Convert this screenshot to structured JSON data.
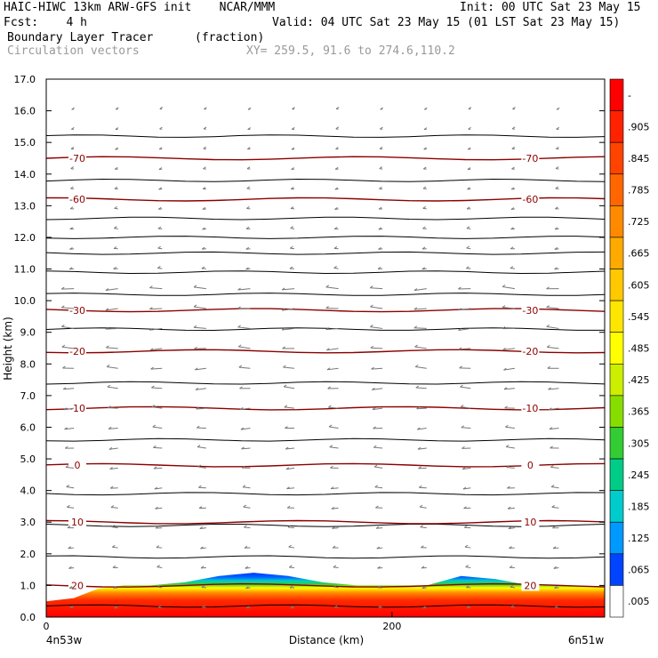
{
  "header": {
    "line1_left": "HAIC-HIWC 13km ARW-GFS init    NCAR/MMM",
    "line1_right": "Init: 00 UTC Sat 23 May 15",
    "line2_left": "Fcst:    4 h",
    "line2_right": "Valid: 04 UTC Sat 23 May 15 (01 LST Sat 23 May 15)",
    "field_name": "Boundary Layer Tracer",
    "field_units": "(fraction)",
    "vector_name": "Circulation vectors",
    "xsec_coords": "XY= 259.5, 91.6 to 274.6,110.2"
  },
  "chart_data": {
    "type": "heatmap",
    "xlabel": "Distance (km)",
    "ylabel": "Height (km)",
    "xlim": [
      0,
      323
    ],
    "ylim": [
      0,
      17
    ],
    "x_ticks": [
      0,
      200
    ],
    "y_ticks": [
      0.0,
      1.0,
      2.0,
      3.0,
      4.0,
      5.0,
      6.0,
      7.0,
      8.0,
      9.0,
      10.0,
      11.0,
      12.0,
      13.0,
      14.0,
      15.0,
      16.0,
      17.0
    ],
    "left_location": "4n53w",
    "right_location": "6n51w",
    "colorbar": {
      "labels": [
        "-",
        ".905",
        ".845",
        ".785",
        ".725",
        ".665",
        ".605",
        ".545",
        ".485",
        ".425",
        ".365",
        ".305",
        ".245",
        ".185",
        ".125",
        ".065",
        ".005"
      ],
      "colors": [
        "#ff0000",
        "#ff2200",
        "#ff4400",
        "#ff6600",
        "#ff8a00",
        "#ffaa00",
        "#ffc800",
        "#ffe600",
        "#ffff00",
        "#ccee00",
        "#88dd00",
        "#33cc33",
        "#00cc88",
        "#00cccc",
        "#0099ff",
        "#0044ff",
        "#ffffff"
      ]
    },
    "tracer_layer": {
      "x_km": [
        0,
        16,
        30,
        45,
        60,
        80,
        100,
        120,
        140,
        160,
        180,
        200,
        220,
        240,
        260,
        280,
        300,
        323
      ],
      "top_km": [
        0.5,
        0.6,
        0.9,
        1.0,
        1.0,
        1.1,
        1.3,
        1.4,
        1.3,
        1.1,
        1.0,
        1.0,
        1.0,
        1.3,
        1.2,
        1.0,
        1.0,
        0.95
      ]
    },
    "temperature_contours": [
      {
        "value": -70,
        "height_km": 14.5,
        "label": "-70"
      },
      {
        "value": -60,
        "height_km": 13.2,
        "label": "-60"
      },
      {
        "value": -30,
        "height_km": 9.7,
        "label": "-30"
      },
      {
        "value": -20,
        "height_km": 8.4,
        "label": "-20"
      },
      {
        "value": -10,
        "height_km": 6.6,
        "label": "-10"
      },
      {
        "value": 0,
        "height_km": 4.8,
        "label": "0"
      },
      {
        "value": 10,
        "height_km": 3.0,
        "label": "10"
      },
      {
        "value": 20,
        "height_km": 1.0,
        "label": "20"
      }
    ],
    "theta_lines_km": [
      0.35,
      1.9,
      2.9,
      3.9,
      5.6,
      7.4,
      9.1,
      10.2,
      10.9,
      11.5,
      12.0,
      12.6,
      13.8,
      15.2
    ],
    "grid": false
  }
}
